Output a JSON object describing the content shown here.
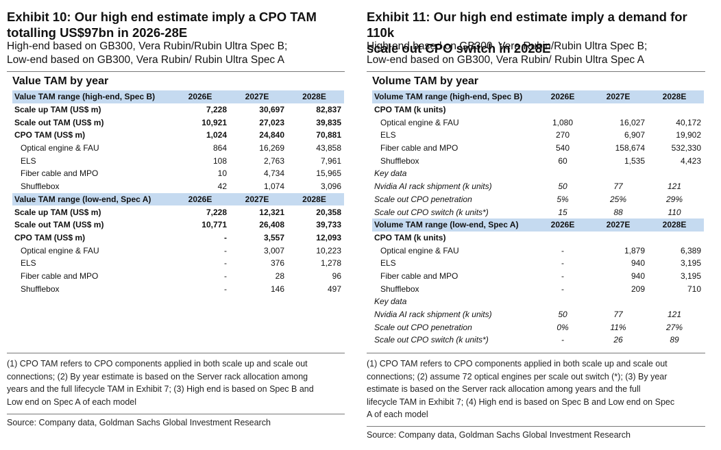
{
  "exhibit10": {
    "title_line1": "Exhibit 10: Our high end estimate imply a CPO TAM",
    "title_line2": "totalling US$97bn in 2026-28E",
    "subtitle_line1": "High-end based on GB300, Vera Rubin/Rubin Ultra Spec B;",
    "subtitle_line2": "Low-end based on GB300, Vera Rubin/ Rubin Ultra Spec A",
    "table_title": "Value TAM by year",
    "rows": [
      {
        "type": "header",
        "label": "Value TAM range (high-end, Spec B)",
        "v": [
          "2026E",
          "2027E",
          "2028E"
        ]
      },
      {
        "type": "bold",
        "label": "Scale up TAM (US$ m)",
        "v": [
          "7,228",
          "30,697",
          "82,837"
        ]
      },
      {
        "type": "bold",
        "label": "Scale out TAM (US$ m)",
        "v": [
          "10,921",
          "27,023",
          "39,835"
        ]
      },
      {
        "type": "bold",
        "label": "CPO TAM (US$ m)",
        "v": [
          "1,024",
          "24,840",
          "70,881"
        ]
      },
      {
        "type": "indent",
        "label": "Optical engine & FAU",
        "v": [
          "864",
          "16,269",
          "43,858"
        ]
      },
      {
        "type": "indent",
        "label": "ELS",
        "v": [
          "108",
          "2,763",
          "7,961"
        ]
      },
      {
        "type": "indent",
        "label": "Fiber cable and MPO",
        "v": [
          "10",
          "4,734",
          "15,965"
        ]
      },
      {
        "type": "indent",
        "label": "Shufflebox",
        "v": [
          "42",
          "1,074",
          "3,096"
        ]
      },
      {
        "type": "header",
        "label": "Value TAM range (low-end, Spec A)",
        "v": [
          "2026E",
          "2027E",
          "2028E"
        ]
      },
      {
        "type": "bold",
        "label": "Scale up TAM (US$ m)",
        "v": [
          "7,228",
          "12,321",
          "20,358"
        ]
      },
      {
        "type": "bold",
        "label": "Scale out TAM (US$ m)",
        "v": [
          "10,771",
          "26,408",
          "39,733"
        ]
      },
      {
        "type": "bold",
        "label": "CPO TAM (US$ m)",
        "v": [
          "-",
          "3,557",
          "12,093"
        ]
      },
      {
        "type": "indent",
        "label": "Optical engine & FAU",
        "v": [
          "-",
          "3,007",
          "10,223"
        ]
      },
      {
        "type": "indent",
        "label": "ELS",
        "v": [
          "-",
          "376",
          "1,278"
        ]
      },
      {
        "type": "indent",
        "label": "Fiber cable and MPO",
        "v": [
          "-",
          "28",
          "96"
        ]
      },
      {
        "type": "indent",
        "label": "Shufflebox",
        "v": [
          "-",
          "146",
          "497"
        ]
      }
    ],
    "notes": [
      "(1) CPO TAM refers to CPO components applied in both scale up and scale out",
      "connections; (2) By year estimate is based on the Server rack allocation among",
      "years and the full lifecycle TAM in Exhibit 7; (3) High end is based on Spec B and",
      "Low end on Spec A of each model"
    ],
    "source": "Source: Company data, Goldman Sachs Global Investment Research"
  },
  "exhibit11": {
    "title_line1": "Exhibit 11: Our high end estimate imply a demand for 110k",
    "title_line2": "scale out CPO switch in 2028E",
    "subtitle_line1": "High-end based on GB300, Vera Rubin/Rubin Ultra Spec B;",
    "subtitle_line2": "Low-end based on GB300, Vera Rubin/ Rubin Ultra Spec A",
    "table_title": "Volume TAM by year",
    "rows": [
      {
        "type": "header",
        "label": "Volume TAM range (high-end, Spec B)",
        "v": [
          "2026E",
          "2027E",
          "2028E"
        ]
      },
      {
        "type": "bold",
        "label": "CPO TAM (k units)",
        "v": [
          "",
          "",
          ""
        ]
      },
      {
        "type": "indent",
        "label": "Optical engine & FAU",
        "v": [
          "1,080",
          "16,027",
          "40,172"
        ]
      },
      {
        "type": "indent",
        "label": "ELS",
        "v": [
          "270",
          "6,907",
          "19,902"
        ]
      },
      {
        "type": "indent",
        "label": "Fiber cable and MPO",
        "v": [
          "540",
          "158,674",
          "532,330"
        ]
      },
      {
        "type": "indent",
        "label": "Shufflebox",
        "v": [
          "60",
          "1,535",
          "4,423"
        ]
      },
      {
        "type": "italic",
        "label": "Key data",
        "v": [
          "",
          "",
          ""
        ]
      },
      {
        "type": "italic-c",
        "label": "Nvidia AI rack shipment (k units)",
        "v": [
          "50",
          "77",
          "121"
        ]
      },
      {
        "type": "italic-c",
        "label": "Scale out CPO penetration",
        "v": [
          "5%",
          "25%",
          "29%"
        ]
      },
      {
        "type": "italic-c",
        "label": "Scale out CPO switch (k units*)",
        "v": [
          "15",
          "88",
          "110"
        ]
      },
      {
        "type": "header",
        "label": "Volume TAM range (low-end, Spec A)",
        "v": [
          "2026E",
          "2027E",
          "2028E"
        ]
      },
      {
        "type": "bold",
        "label": "CPO TAM (k units)",
        "v": [
          "",
          "",
          ""
        ]
      },
      {
        "type": "indent",
        "label": "Optical engine & FAU",
        "v": [
          "-",
          "1,879",
          "6,389"
        ]
      },
      {
        "type": "indent",
        "label": "ELS",
        "v": [
          "-",
          "940",
          "3,195"
        ]
      },
      {
        "type": "indent",
        "label": "Fiber cable and MPO",
        "v": [
          "-",
          "940",
          "3,195"
        ]
      },
      {
        "type": "indent",
        "label": "Shufflebox",
        "v": [
          "-",
          "209",
          "710"
        ]
      },
      {
        "type": "italic",
        "label": "Key data",
        "v": [
          "",
          "",
          ""
        ]
      },
      {
        "type": "italic-c",
        "label": "Nvidia AI rack shipment (k units)",
        "v": [
          "50",
          "77",
          "121"
        ]
      },
      {
        "type": "italic-c",
        "label": "Scale out CPO penetration",
        "v": [
          "0%",
          "11%",
          "27%"
        ]
      },
      {
        "type": "italic-c",
        "label": "Scale out CPO switch (k units*)",
        "v": [
          "-",
          "26",
          "89"
        ]
      }
    ],
    "notes": [
      "(1) CPO TAM refers to CPO components applied in both scale up and scale out",
      "connections; (2) assume 72 optical engines per scale out switch (*); (3) By year",
      "estimate is based on the Server rack allocation among years and the full",
      "lifecycle TAM in Exhibit 7; (4) High end is based on Spec B and Low end on Spec",
      "A of each model"
    ],
    "source": "Source: Company data, Goldman Sachs Global Investment Research"
  }
}
